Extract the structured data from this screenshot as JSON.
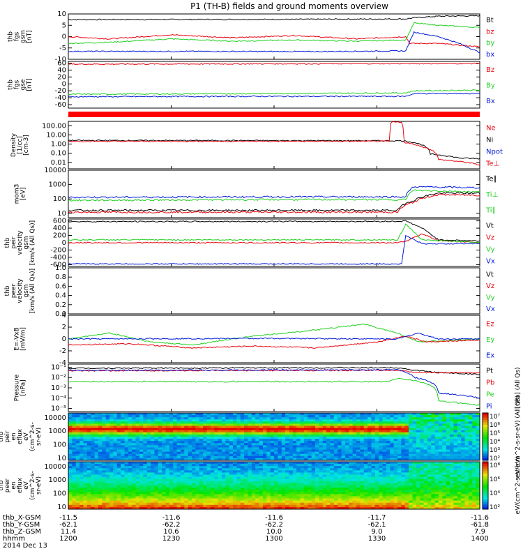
{
  "title": "P1 (TH-B) fields and ground moments overview",
  "colors": {
    "black": "#000000",
    "red": "#e8000b",
    "green": "#1fd01f",
    "blue": "#0018d8"
  },
  "chart_data": [
    {
      "type": "line",
      "ylabel": [
        "thb",
        "fgs",
        "gsm",
        "[nT]"
      ],
      "ylim": [
        -10,
        10
      ],
      "yticks": [
        -10,
        -5,
        0,
        5,
        10
      ],
      "legend": [
        {
          "name": "Bt",
          "color": "black"
        },
        {
          "name": "bz",
          "color": "red"
        },
        {
          "name": "by",
          "color": "green"
        },
        {
          "name": "bx",
          "color": "blue"
        }
      ],
      "series": [
        {
          "name": "Bt",
          "color": "black",
          "points": [
            [
              0,
              7.5
            ],
            [
              0.5,
              7.6
            ],
            [
              0.82,
              7.8
            ],
            [
              0.84,
              8.3
            ],
            [
              0.9,
              9.0
            ],
            [
              1,
              9.2
            ]
          ]
        },
        {
          "name": "bz",
          "color": "red",
          "points": [
            [
              0,
              0
            ],
            [
              0.1,
              -1
            ],
            [
              0.25,
              0.8
            ],
            [
              0.4,
              -0.5
            ],
            [
              0.55,
              0.5
            ],
            [
              0.7,
              -1
            ],
            [
              0.82,
              0
            ],
            [
              0.83,
              -3
            ],
            [
              0.9,
              -3
            ],
            [
              1,
              -4.5
            ]
          ]
        },
        {
          "name": "by",
          "color": "green",
          "points": [
            [
              0,
              -3
            ],
            [
              0.1,
              -2.5
            ],
            [
              0.25,
              -1
            ],
            [
              0.4,
              -2
            ],
            [
              0.55,
              -1.5
            ],
            [
              0.7,
              -2
            ],
            [
              0.82,
              -1.5
            ],
            [
              0.84,
              6
            ],
            [
              0.9,
              5
            ],
            [
              1,
              4
            ]
          ]
        },
        {
          "name": "bx",
          "color": "blue",
          "points": [
            [
              0,
              -6.5
            ],
            [
              0.3,
              -6.5
            ],
            [
              0.6,
              -6.6
            ],
            [
              0.82,
              -6.3
            ],
            [
              0.84,
              2
            ],
            [
              0.9,
              0
            ],
            [
              0.95,
              -3
            ],
            [
              1,
              -7
            ]
          ]
        }
      ]
    },
    {
      "type": "line",
      "ylabel": [
        "thb",
        "fgs",
        "gse",
        "[nT]"
      ],
      "ylim": [
        -70,
        65
      ],
      "yticks": [
        -60,
        -40,
        -20,
        0,
        20,
        40,
        60
      ],
      "legend": [
        {
          "name": "Bz",
          "color": "red"
        },
        {
          "name": "By",
          "color": "green"
        },
        {
          "name": "Bx",
          "color": "blue"
        }
      ],
      "series": [
        {
          "name": "Bz",
          "color": "red",
          "points": [
            [
              0,
              57
            ],
            [
              0.5,
              58
            ],
            [
              1,
              59
            ]
          ]
        },
        {
          "name": "By",
          "color": "green",
          "points": [
            [
              0,
              -30
            ],
            [
              0.5,
              -28
            ],
            [
              0.82,
              -26
            ],
            [
              0.84,
              -20
            ],
            [
              1,
              -18
            ]
          ]
        },
        {
          "name": "Bx",
          "color": "blue",
          "points": [
            [
              0,
              -37
            ],
            [
              0.5,
              -36
            ],
            [
              0.82,
              -36
            ],
            [
              0.84,
              -28
            ],
            [
              1,
              -28
            ]
          ]
        }
      ]
    },
    {
      "type": "bar",
      "note": "red flag bar",
      "ylabel": [],
      "legend": []
    },
    {
      "type": "line",
      "log": true,
      "ylabel": [
        "Density",
        "[1/cc]",
        "[cm-3]"
      ],
      "ylim": [
        0.002,
        300
      ],
      "yticks": [
        100,
        10,
        1,
        0.1,
        0.01
      ],
      "ytick_labels": [
        "100.00",
        "10.00",
        "1.00",
        "0.10",
        "0.01"
      ],
      "legend": [
        {
          "name": "Ne",
          "color": "red"
        },
        {
          "name": "Ni",
          "color": "black"
        },
        {
          "name": "Npot",
          "color": "blue"
        },
        {
          "name": "Te⊥",
          "color": "red"
        }
      ],
      "series": [
        {
          "name": "Ni",
          "color": "black",
          "points": [
            [
              0,
              2.5
            ],
            [
              0.5,
              2.4
            ],
            [
              0.81,
              2.3
            ],
            [
              0.84,
              1.5
            ],
            [
              0.88,
              0.08
            ],
            [
              0.95,
              0.03
            ],
            [
              1,
              0.025
            ]
          ]
        },
        {
          "name": "Ne",
          "color": "red",
          "points": [
            [
              0,
              2.0
            ],
            [
              0.78,
              2.0
            ],
            [
              0.785,
              250
            ],
            [
              0.81,
              250
            ],
            [
              0.815,
              1.5
            ],
            [
              0.86,
              0.5
            ],
            [
              0.9,
              0.02
            ],
            [
              1,
              0.005
            ]
          ]
        }
      ]
    },
    {
      "type": "line",
      "log": true,
      "ylabel": [
        "mom3",
        "[eV]"
      ],
      "ylim": [
        5,
        10000
      ],
      "yticks": [
        10000,
        1000,
        100,
        10
      ],
      "ytick_labels": [
        "10000",
        "1000",
        "100",
        "10"
      ],
      "legend": [
        {
          "name": "Te∥",
          "color": "black"
        },
        {
          "name": "Ti⊥",
          "color": "green"
        },
        {
          "name": "Ti∥",
          "color": "green"
        }
      ],
      "series": [
        {
          "name": "Tperp",
          "color": "blue",
          "points": [
            [
              0,
              130
            ],
            [
              0.5,
              140
            ],
            [
              0.82,
              140
            ],
            [
              0.84,
              700
            ],
            [
              1,
              600
            ]
          ]
        },
        {
          "name": "Ti",
          "color": "green",
          "points": [
            [
              0,
              80
            ],
            [
              0.5,
              90
            ],
            [
              0.82,
              90
            ],
            [
              0.84,
              400
            ],
            [
              1,
              300
            ]
          ]
        },
        {
          "name": "Tepar",
          "color": "black",
          "points": [
            [
              0,
              16
            ],
            [
              0.8,
              16
            ],
            [
              0.84,
              80
            ],
            [
              0.9,
              250
            ],
            [
              1,
              250
            ]
          ]
        },
        {
          "name": "Teperp",
          "color": "red",
          "points": [
            [
              0,
              12
            ],
            [
              0.8,
              12
            ],
            [
              0.84,
              60
            ],
            [
              0.9,
              200
            ],
            [
              1,
              180
            ]
          ]
        }
      ]
    },
    {
      "type": "line",
      "ylabel": [
        "thb",
        "peir",
        "velocity",
        "gsm",
        "[km/s (All Qs)]"
      ],
      "ylim": [
        -650,
        650
      ],
      "yticks": [
        -600,
        -400,
        -200,
        0,
        200,
        400,
        600
      ],
      "legend": [
        {
          "name": "Vt",
          "color": "black"
        },
        {
          "name": "Vz",
          "color": "red"
        },
        {
          "name": "Vy",
          "color": "green"
        },
        {
          "name": "Vx",
          "color": "blue"
        }
      ],
      "series": [
        {
          "name": "Vt",
          "color": "black",
          "points": [
            [
              0,
              580
            ],
            [
              0.8,
              585
            ],
            [
              0.82,
              600
            ],
            [
              0.86,
              400
            ],
            [
              0.9,
              80
            ],
            [
              1,
              50
            ]
          ]
        },
        {
          "name": "Vz",
          "color": "red",
          "points": [
            [
              0,
              0
            ],
            [
              0.8,
              0
            ],
            [
              0.82,
              30
            ],
            [
              0.86,
              250
            ],
            [
              0.9,
              50
            ],
            [
              1,
              10
            ]
          ]
        },
        {
          "name": "Vy",
          "color": "green",
          "points": [
            [
              0,
              80
            ],
            [
              0.8,
              80
            ],
            [
              0.82,
              500
            ],
            [
              0.86,
              80
            ],
            [
              1,
              10
            ]
          ]
        },
        {
          "name": "Vx",
          "color": "blue",
          "points": [
            [
              0,
              -580
            ],
            [
              0.81,
              -580
            ],
            [
              0.82,
              200
            ],
            [
              0.86,
              -30
            ],
            [
              1,
              -20
            ]
          ]
        }
      ]
    },
    {
      "type": "line",
      "ylabel": [
        "thb",
        "peer",
        "velocity",
        "gsm",
        "[km/s (All Qs)]"
      ],
      "ylim": [
        0,
        1
      ],
      "yticks": [
        0,
        0.2,
        0.4,
        0.6,
        0.8,
        1.0
      ],
      "ytick_labels": [
        "0.0",
        "0.2",
        "0.4",
        "0.6",
        "0.8",
        "1.0"
      ],
      "legend": [
        {
          "name": "Vt",
          "color": "black"
        },
        {
          "name": "Vz",
          "color": "red"
        },
        {
          "name": "Vy",
          "color": "green"
        },
        {
          "name": "Vx",
          "color": "blue"
        }
      ],
      "series": []
    },
    {
      "type": "line",
      "ylabel": [
        "E=-VxB",
        "[mV/m]"
      ],
      "ylim": [
        -4,
        4
      ],
      "yticks": [
        -4,
        -2,
        0,
        2,
        4
      ],
      "legend": [
        {
          "name": "Ez",
          "color": "red"
        },
        {
          "name": "Ey",
          "color": "green"
        },
        {
          "name": "Ex",
          "color": "blue"
        }
      ],
      "series": [
        {
          "name": "Ey",
          "color": "green",
          "points": [
            [
              0,
              0
            ],
            [
              0.1,
              1
            ],
            [
              0.2,
              -0.5
            ],
            [
              0.3,
              -1
            ],
            [
              0.45,
              0.5
            ],
            [
              0.6,
              1.5
            ],
            [
              0.72,
              2.5
            ],
            [
              0.8,
              1.0
            ],
            [
              0.85,
              -0.5
            ],
            [
              1,
              0
            ]
          ]
        },
        {
          "name": "Ez",
          "color": "red",
          "points": [
            [
              0,
              -1
            ],
            [
              0.15,
              -0.8
            ],
            [
              0.3,
              -1.5
            ],
            [
              0.45,
              -1.2
            ],
            [
              0.6,
              -1.5
            ],
            [
              0.75,
              -0.5
            ],
            [
              0.82,
              0.5
            ],
            [
              0.87,
              -0.5
            ],
            [
              1,
              -0.2
            ]
          ]
        },
        {
          "name": "Ex",
          "color": "blue",
          "points": [
            [
              0,
              0
            ],
            [
              0.5,
              0.1
            ],
            [
              0.8,
              0
            ],
            [
              0.85,
              1
            ],
            [
              0.9,
              0
            ],
            [
              1,
              0
            ]
          ]
        }
      ]
    },
    {
      "type": "line",
      "log": true,
      "ylabel": [
        "Pressure",
        "[nPa]"
      ],
      "ylim": [
        5e-06,
        0.2
      ],
      "yticks": [
        0.1,
        0.01,
        0.001,
        0.0001,
        1e-05
      ],
      "ytick_labels": [
        "10⁻¹",
        "10⁻²",
        "10⁻³",
        "10⁻⁴",
        "10⁻⁵"
      ],
      "legend": [
        {
          "name": "Pt",
          "color": "black"
        },
        {
          "name": "Pb",
          "color": "red"
        },
        {
          "name": "Pe",
          "color": "green"
        },
        {
          "name": "Pi",
          "color": "blue"
        }
      ],
      "side_label": "[nPa] (All Qs)",
      "series": [
        {
          "name": "Pt",
          "color": "black",
          "points": [
            [
              0,
              0.08
            ],
            [
              0.8,
              0.09
            ],
            [
              0.84,
              0.05
            ],
            [
              0.9,
              0.03
            ],
            [
              1,
              0.02
            ]
          ]
        },
        {
          "name": "Pb",
          "color": "red",
          "points": [
            [
              0,
              0.045
            ],
            [
              0.8,
              0.05
            ],
            [
              0.84,
              0.03
            ],
            [
              0.9,
              0.03
            ],
            [
              1,
              0.03
            ]
          ]
        },
        {
          "name": "Pi",
          "color": "blue",
          "points": [
            [
              0,
              0.05
            ],
            [
              0.8,
              0.055
            ],
            [
              0.84,
              0.01
            ],
            [
              0.9,
              0.0003
            ],
            [
              1,
              0.0001
            ]
          ]
        },
        {
          "name": "Pe",
          "color": "green",
          "points": [
            [
              0,
              0.004
            ],
            [
              0.78,
              0.004
            ],
            [
              0.8,
              0.008
            ],
            [
              0.84,
              0.005
            ],
            [
              0.9,
              5e-05
            ],
            [
              1,
              2e-05
            ]
          ]
        }
      ]
    },
    {
      "type": "heatmap",
      "ylabel": [
        "thb",
        "peir",
        "en",
        "eflux",
        "eV",
        "(cm^2-s-",
        "sr-eV)"
      ],
      "yticks": [
        10000,
        1000,
        100,
        10
      ],
      "ytick_labels": [
        "10000",
        "1000",
        "100",
        "10"
      ],
      "colorbar_labels": [
        "10⁷",
        "10⁶",
        "10⁵",
        "10⁴",
        "10³",
        "10²"
      ],
      "colorbar_title": "eV/(cm^2-s-sr-eV) (All Qs)"
    },
    {
      "type": "heatmap",
      "ylabel": [
        "thb",
        "peer",
        "en",
        "eflux",
        "eV",
        "(cm^2-s-",
        "sr-eV)"
      ],
      "yticks": [
        10000,
        1000,
        100,
        10
      ],
      "ytick_labels": [
        "10000",
        "1000",
        "100",
        "10"
      ],
      "colorbar_labels": [
        "10⁸",
        "10⁶",
        "10⁴",
        "10²"
      ],
      "colorbar_title": "eV/(cm^2-s-sr-eV)"
    }
  ],
  "xaxis": {
    "row_labels": [
      "thb_X-GSM",
      "thb_Y-GSM",
      "thb_Z-GSM",
      "hhmm",
      "2014 Dec 13"
    ],
    "ticks": [
      {
        "x": 0.0,
        "values": [
          "-11.5",
          "-62.1",
          "11.4",
          "1200"
        ]
      },
      {
        "x": 0.25,
        "values": [
          "-11.6",
          "-62.2",
          "10.6",
          "1230"
        ]
      },
      {
        "x": 0.5,
        "values": [
          "-11.6",
          "-62.2",
          "10.0",
          "1300"
        ]
      },
      {
        "x": 0.75,
        "values": [
          "-11.7",
          "-62.1",
          "9.0",
          "1330"
        ]
      },
      {
        "x": 1.0,
        "values": [
          "-11.6",
          "-61.8",
          "7.9",
          "1400"
        ]
      }
    ]
  }
}
